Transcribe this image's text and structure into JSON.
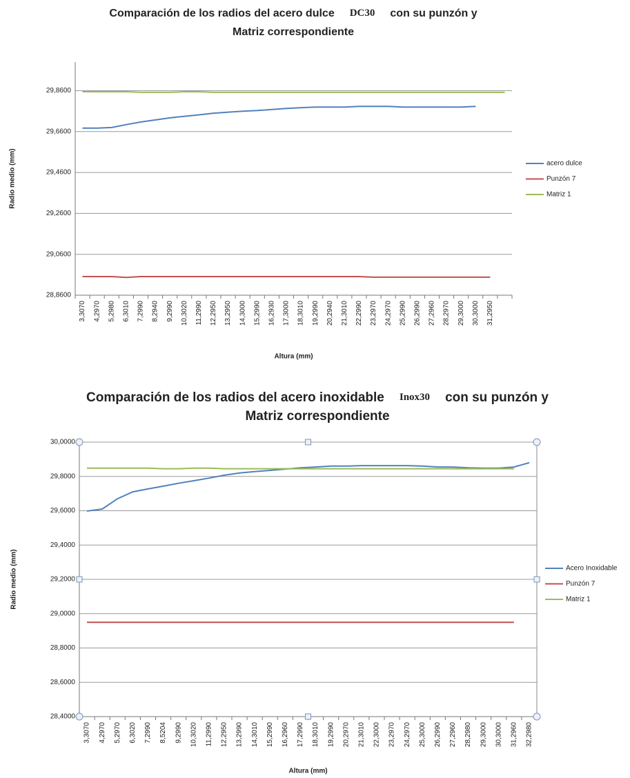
{
  "chart_data": [
    {
      "type": "line",
      "title_parts": [
        "Comparación de los radios del acero dulce",
        "DC30",
        "con su punzón y",
        "Matriz correspondiente"
      ],
      "x_label": "Altura (mm)",
      "y_label": "Radio medio (mm)",
      "categories": [
        "3,3070",
        "4,2970",
        "5,2980",
        "6,3010",
        "7,2990",
        "8,2940",
        "9,2990",
        "10,3020",
        "11,2990",
        "12,2950",
        "13,2950",
        "14,3000",
        "15,2990",
        "16,2930",
        "17,3000",
        "18,3010",
        "19,2990",
        "20,2940",
        "21,3010",
        "22,2990",
        "23,2970",
        "24,2970",
        "25,2990",
        "26,2990",
        "27,2960",
        "28,2970",
        "29,3000",
        "30,3000",
        "31,2950",
        null
      ],
      "ylim": [
        28.86,
        30.0
      ],
      "yticks": [
        {
          "value": 28.86,
          "label": "28,8600"
        },
        {
          "value": 29.06,
          "label": "29,0600"
        },
        {
          "value": 29.26,
          "label": "29,2600"
        },
        {
          "value": 29.46,
          "label": "29,4600"
        },
        {
          "value": 29.66,
          "label": "29,6600"
        },
        {
          "value": 29.86,
          "label": "29,8600"
        }
      ],
      "grid": true,
      "legend": "right",
      "series": [
        {
          "name": "acero dulce",
          "color": "#4f81bd",
          "values": [
            29.677,
            29.677,
            29.68,
            29.694,
            29.707,
            29.717,
            29.727,
            29.735,
            29.742,
            29.75,
            29.755,
            29.76,
            29.763,
            29.768,
            29.773,
            29.777,
            29.78,
            29.78,
            29.78,
            29.783,
            29.783,
            29.783,
            29.78,
            29.78,
            29.78,
            29.78,
            29.78,
            29.783,
            null,
            null
          ]
        },
        {
          "name": "Punzón 7",
          "color": "#c0504d",
          "values": [
            28.951,
            28.951,
            28.951,
            28.947,
            28.951,
            28.951,
            28.951,
            28.951,
            28.951,
            28.951,
            28.951,
            28.951,
            28.951,
            28.951,
            28.951,
            28.951,
            28.951,
            28.951,
            28.951,
            28.951,
            28.948,
            28.948,
            28.948,
            28.948,
            28.948,
            28.948,
            28.948,
            28.948,
            28.948,
            null
          ]
        },
        {
          "name": "Matriz 1",
          "color": "#9bbb59",
          "values": [
            29.855,
            29.855,
            29.855,
            29.855,
            29.852,
            29.852,
            29.852,
            29.855,
            29.855,
            29.852,
            29.852,
            29.852,
            29.852,
            29.852,
            29.852,
            29.852,
            29.852,
            29.852,
            29.852,
            29.852,
            29.852,
            29.852,
            29.852,
            29.852,
            29.852,
            29.852,
            29.852,
            29.852,
            29.852,
            29.852
          ]
        }
      ]
    },
    {
      "type": "line",
      "title_parts": [
        "Comparación de los radios del acero inoxidable",
        "Inox30",
        "con su punzón y",
        "Matriz correspondiente"
      ],
      "x_label": "Altura (mm)",
      "y_label": "Radio medio (mm)",
      "categories": [
        "3,3070",
        "4,2970",
        "5,2970",
        "6,3020",
        "7,2990",
        "8,5204",
        "9,2990",
        "10,3020",
        "11,2990",
        "12,2950",
        "13,2990",
        "14,3010",
        "15,2990",
        "16,2960",
        "17,2990",
        "18,3010",
        "19,2990",
        "20,2970",
        "21,3010",
        "22,3000",
        "23,2970",
        "24,2970",
        "25,3000",
        "26,2990",
        "27,2960",
        "28,2980",
        "29,3000",
        "30,3000",
        "31,2960",
        "32,2980"
      ],
      "ylim": [
        28.4,
        30.0
      ],
      "yticks": [
        {
          "value": 28.4,
          "label": "28,4000"
        },
        {
          "value": 28.6,
          "label": "28,6000"
        },
        {
          "value": 28.8,
          "label": "28,8000"
        },
        {
          "value": 29.0,
          "label": "29,0000"
        },
        {
          "value": 29.2,
          "label": "29,2000"
        },
        {
          "value": 29.4,
          "label": "29,4000"
        },
        {
          "value": 29.6,
          "label": "29,6000"
        },
        {
          "value": 29.8,
          "label": "29,8000"
        },
        {
          "value": 30.0,
          "label": "30,0000"
        }
      ],
      "grid": true,
      "legend": "right",
      "series": [
        {
          "name": "Acero Inoxidable",
          "color": "#4f81bd",
          "values": [
            29.598,
            29.61,
            29.67,
            29.71,
            29.727,
            29.743,
            29.76,
            29.775,
            29.79,
            29.807,
            29.82,
            29.828,
            29.835,
            29.843,
            29.85,
            29.855,
            29.86,
            29.86,
            29.863,
            29.863,
            29.863,
            29.863,
            29.86,
            29.855,
            29.855,
            29.85,
            29.848,
            29.848,
            29.855,
            29.88
          ]
        },
        {
          "name": "Punzón 7",
          "color": "#c0504d",
          "values": [
            28.95,
            28.95,
            28.95,
            28.95,
            28.95,
            28.95,
            28.95,
            28.95,
            28.95,
            28.95,
            28.95,
            28.95,
            28.95,
            28.95,
            28.95,
            28.95,
            28.95,
            28.95,
            28.95,
            28.95,
            28.95,
            28.95,
            28.95,
            28.95,
            28.95,
            28.95,
            28.95,
            28.95,
            28.95,
            null
          ]
        },
        {
          "name": "Matriz 1",
          "color": "#9bbb59",
          "values": [
            29.848,
            29.848,
            29.848,
            29.848,
            29.848,
            29.845,
            29.845,
            29.848,
            29.848,
            29.845,
            29.845,
            29.845,
            29.845,
            29.845,
            29.845,
            29.845,
            29.845,
            29.845,
            29.845,
            29.845,
            29.845,
            29.845,
            29.845,
            29.845,
            29.845,
            29.845,
            29.845,
            29.845,
            29.845,
            null
          ]
        }
      ]
    }
  ]
}
